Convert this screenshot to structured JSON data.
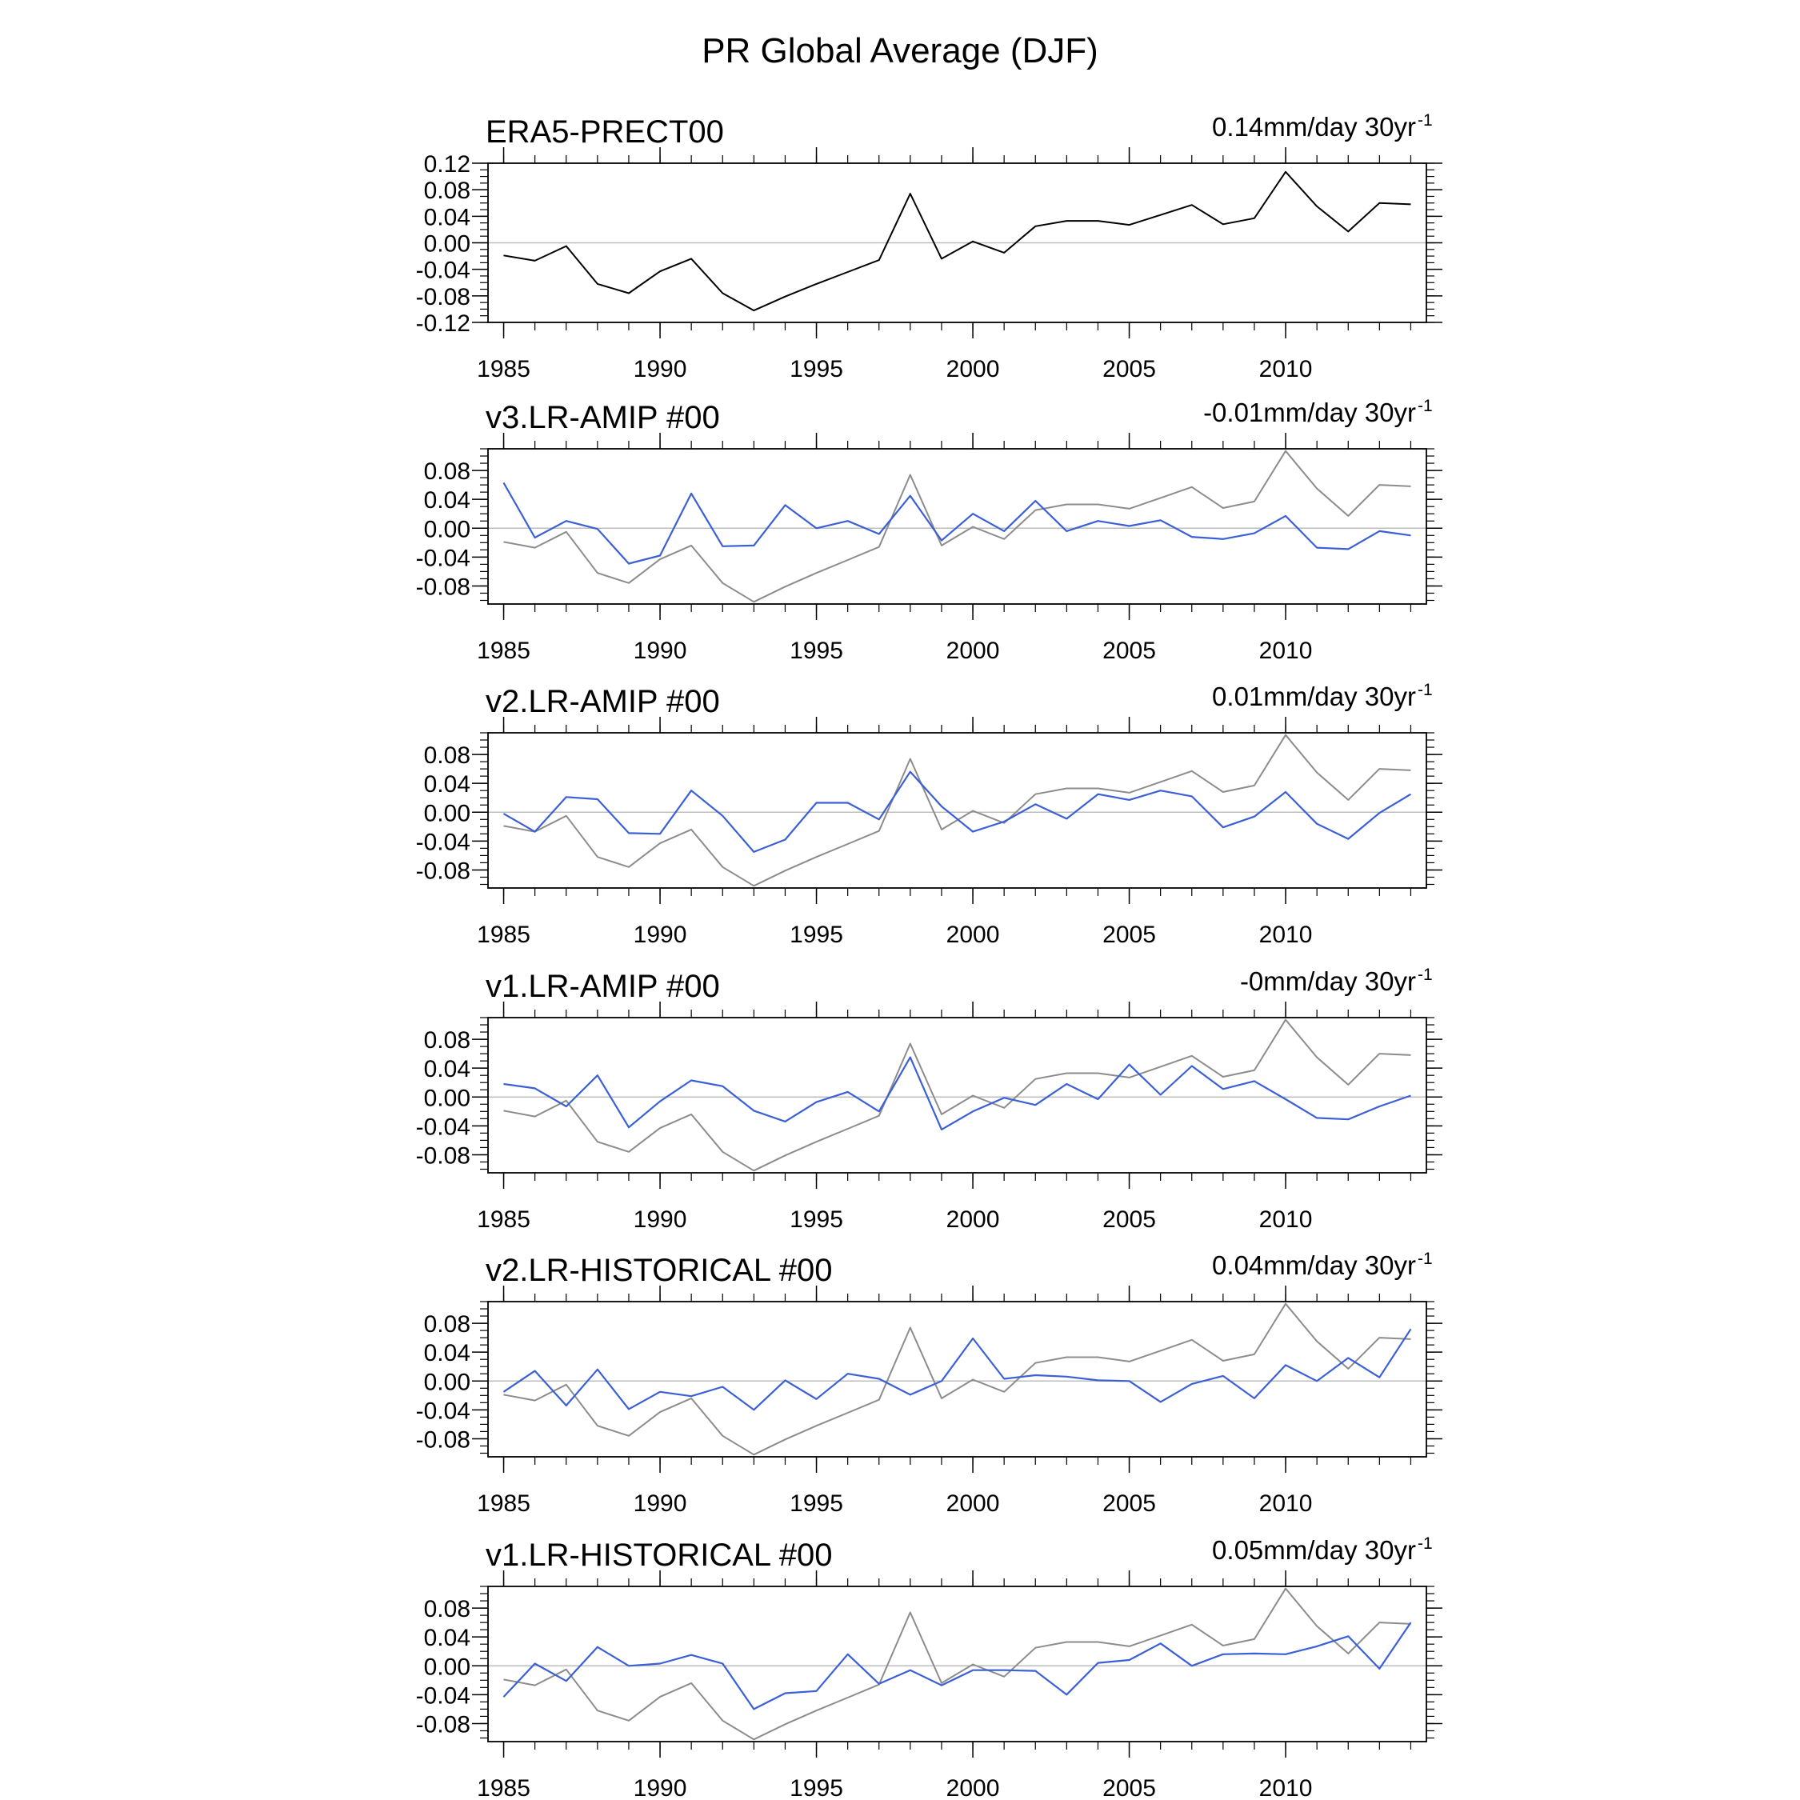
{
  "figure": {
    "title": "PR Global Average (DJF)"
  },
  "chart_data": [
    {
      "type": "line",
      "title": "ERA5-PRECT00",
      "trend_label": "0.14mm/day 30yr",
      "trend_exp": "-1",
      "x": [
        1985,
        1986,
        1987,
        1988,
        1989,
        1990,
        1991,
        1992,
        1993,
        1994,
        1995,
        1996,
        1997,
        1998,
        1999,
        2000,
        2001,
        2002,
        2003,
        2004,
        2005,
        2006,
        2007,
        2008,
        2009,
        2010,
        2011,
        2012,
        2013,
        2014
      ],
      "xlim": [
        1984.5,
        2014.5
      ],
      "xticks": [
        1985,
        1990,
        1995,
        2000,
        2005,
        2010
      ],
      "ylim": [
        -0.12,
        0.12
      ],
      "yticks": [
        -0.12,
        -0.08,
        -0.04,
        0.0,
        0.04,
        0.08,
        0.12
      ],
      "ytick_labels": [
        "-0.12",
        "-0.08",
        "-0.04",
        "0.00",
        "0.04",
        "0.08",
        "0.12"
      ],
      "series": [
        {
          "name": "ERA5",
          "color": "#000000",
          "values": [
            -0.019,
            -0.027,
            -0.005,
            -0.062,
            -0.076,
            -0.043,
            -0.024,
            -0.076,
            -0.102,
            -0.081,
            -0.062,
            -0.044,
            -0.026,
            0.074,
            -0.024,
            0.002,
            -0.015,
            0.025,
            0.033,
            0.033,
            0.027,
            0.042,
            0.057,
            0.028,
            0.037,
            0.107,
            0.055,
            0.017,
            0.06,
            0.058
          ]
        }
      ]
    },
    {
      "type": "line",
      "title": "v3.LR-AMIP  #00",
      "trend_label": "-0.01mm/day 30yr",
      "trend_exp": "-1",
      "x": [
        1985,
        1986,
        1987,
        1988,
        1989,
        1990,
        1991,
        1992,
        1993,
        1994,
        1995,
        1996,
        1997,
        1998,
        1999,
        2000,
        2001,
        2002,
        2003,
        2004,
        2005,
        2006,
        2007,
        2008,
        2009,
        2010,
        2011,
        2012,
        2013,
        2014
      ],
      "xlim": [
        1984.5,
        2014.5
      ],
      "xticks": [
        1985,
        1990,
        1995,
        2000,
        2005,
        2010
      ],
      "ylim": [
        -0.105,
        0.11
      ],
      "yticks": [
        -0.08,
        -0.04,
        0.0,
        0.04,
        0.08
      ],
      "ytick_labels": [
        "-0.08",
        "-0.04",
        "0.00",
        "0.04",
        "0.08"
      ],
      "series": [
        {
          "name": "ERA5",
          "color": "#8c8c8c",
          "values": [
            -0.019,
            -0.027,
            -0.005,
            -0.062,
            -0.076,
            -0.043,
            -0.024,
            -0.076,
            -0.102,
            -0.081,
            -0.062,
            -0.044,
            -0.026,
            0.074,
            -0.024,
            0.002,
            -0.015,
            0.025,
            0.033,
            0.033,
            0.027,
            0.042,
            0.057,
            0.028,
            0.037,
            0.107,
            0.055,
            0.017,
            0.06,
            0.058
          ]
        },
        {
          "name": "v3.LR-AMIP",
          "color": "#3a5fd6",
          "values": [
            0.063,
            -0.013,
            0.01,
            -0.001,
            -0.049,
            -0.038,
            0.048,
            -0.025,
            -0.024,
            0.032,
            0.0,
            0.01,
            -0.008,
            0.045,
            -0.017,
            0.02,
            -0.004,
            0.038,
            -0.004,
            0.01,
            0.003,
            0.011,
            -0.012,
            -0.015,
            -0.007,
            0.017,
            -0.027,
            -0.029,
            -0.004,
            -0.01
          ]
        }
      ]
    },
    {
      "type": "line",
      "title": "v2.LR-AMIP  #00",
      "trend_label": "0.01mm/day 30yr",
      "trend_exp": "-1",
      "x": [
        1985,
        1986,
        1987,
        1988,
        1989,
        1990,
        1991,
        1992,
        1993,
        1994,
        1995,
        1996,
        1997,
        1998,
        1999,
        2000,
        2001,
        2002,
        2003,
        2004,
        2005,
        2006,
        2007,
        2008,
        2009,
        2010,
        2011,
        2012,
        2013,
        2014
      ],
      "xlim": [
        1984.5,
        2014.5
      ],
      "xticks": [
        1985,
        1990,
        1995,
        2000,
        2005,
        2010
      ],
      "ylim": [
        -0.105,
        0.11
      ],
      "yticks": [
        -0.08,
        -0.04,
        0.0,
        0.04,
        0.08
      ],
      "ytick_labels": [
        "-0.08",
        "-0.04",
        "0.00",
        "0.04",
        "0.08"
      ],
      "series": [
        {
          "name": "ERA5",
          "color": "#8c8c8c",
          "values": [
            -0.019,
            -0.027,
            -0.005,
            -0.062,
            -0.076,
            -0.043,
            -0.024,
            -0.076,
            -0.102,
            -0.081,
            -0.062,
            -0.044,
            -0.026,
            0.074,
            -0.024,
            0.002,
            -0.015,
            0.025,
            0.033,
            0.033,
            0.027,
            0.042,
            0.057,
            0.028,
            0.037,
            0.107,
            0.055,
            0.017,
            0.06,
            0.058
          ]
        },
        {
          "name": "v2.LR-AMIP",
          "color": "#3a5fd6",
          "values": [
            -0.002,
            -0.027,
            0.021,
            0.018,
            -0.029,
            -0.03,
            0.03,
            -0.005,
            -0.055,
            -0.038,
            0.013,
            0.013,
            -0.01,
            0.056,
            0.008,
            -0.027,
            -0.013,
            0.011,
            -0.009,
            0.025,
            0.017,
            0.03,
            0.022,
            -0.021,
            -0.006,
            0.028,
            -0.016,
            -0.037,
            -0.001,
            0.025
          ]
        }
      ]
    },
    {
      "type": "line",
      "title": "v1.LR-AMIP  #00",
      "trend_label": "-0mm/day 30yr",
      "trend_exp": "-1",
      "x": [
        1985,
        1986,
        1987,
        1988,
        1989,
        1990,
        1991,
        1992,
        1993,
        1994,
        1995,
        1996,
        1997,
        1998,
        1999,
        2000,
        2001,
        2002,
        2003,
        2004,
        2005,
        2006,
        2007,
        2008,
        2009,
        2010,
        2011,
        2012,
        2013,
        2014
      ],
      "xlim": [
        1984.5,
        2014.5
      ],
      "xticks": [
        1985,
        1990,
        1995,
        2000,
        2005,
        2010
      ],
      "ylim": [
        -0.105,
        0.11
      ],
      "yticks": [
        -0.08,
        -0.04,
        0.0,
        0.04,
        0.08
      ],
      "ytick_labels": [
        "-0.08",
        "-0.04",
        "0.00",
        "0.04",
        "0.08"
      ],
      "series": [
        {
          "name": "ERA5",
          "color": "#8c8c8c",
          "values": [
            -0.019,
            -0.027,
            -0.005,
            -0.062,
            -0.076,
            -0.043,
            -0.024,
            -0.076,
            -0.102,
            -0.081,
            -0.062,
            -0.044,
            -0.026,
            0.074,
            -0.024,
            0.002,
            -0.015,
            0.025,
            0.033,
            0.033,
            0.027,
            0.042,
            0.057,
            0.028,
            0.037,
            0.107,
            0.055,
            0.017,
            0.06,
            0.058
          ]
        },
        {
          "name": "v1.LR-AMIP",
          "color": "#3a5fd6",
          "values": [
            0.018,
            0.012,
            -0.013,
            0.03,
            -0.042,
            -0.006,
            0.023,
            0.015,
            -0.019,
            -0.034,
            -0.007,
            0.007,
            -0.02,
            0.055,
            -0.045,
            -0.02,
            -0.001,
            -0.011,
            0.018,
            -0.003,
            0.045,
            0.003,
            0.043,
            0.011,
            0.022,
            -0.003,
            -0.029,
            -0.031,
            -0.013,
            0.002
          ]
        }
      ]
    },
    {
      "type": "line",
      "title": "v2.LR-HISTORICAL  #00",
      "trend_label": "0.04mm/day 30yr",
      "trend_exp": "-1",
      "x": [
        1985,
        1986,
        1987,
        1988,
        1989,
        1990,
        1991,
        1992,
        1993,
        1994,
        1995,
        1996,
        1997,
        1998,
        1999,
        2000,
        2001,
        2002,
        2003,
        2004,
        2005,
        2006,
        2007,
        2008,
        2009,
        2010,
        2011,
        2012,
        2013,
        2014
      ],
      "xlim": [
        1984.5,
        2014.5
      ],
      "xticks": [
        1985,
        1990,
        1995,
        2000,
        2005,
        2010
      ],
      "ylim": [
        -0.105,
        0.11
      ],
      "yticks": [
        -0.08,
        -0.04,
        0.0,
        0.04,
        0.08
      ],
      "ytick_labels": [
        "-0.08",
        "-0.04",
        "0.00",
        "0.04",
        "0.08"
      ],
      "series": [
        {
          "name": "ERA5",
          "color": "#8c8c8c",
          "values": [
            -0.019,
            -0.027,
            -0.005,
            -0.062,
            -0.076,
            -0.043,
            -0.024,
            -0.076,
            -0.102,
            -0.081,
            -0.062,
            -0.044,
            -0.026,
            0.074,
            -0.024,
            0.002,
            -0.015,
            0.025,
            0.033,
            0.033,
            0.027,
            0.042,
            0.057,
            0.028,
            0.037,
            0.107,
            0.055,
            0.017,
            0.06,
            0.058
          ]
        },
        {
          "name": "v2.LR-HISTORICAL",
          "color": "#3a5fd6",
          "values": [
            -0.015,
            0.014,
            -0.034,
            0.016,
            -0.039,
            -0.015,
            -0.021,
            -0.008,
            -0.04,
            0.001,
            -0.025,
            0.01,
            0.003,
            -0.019,
            0.0,
            0.059,
            0.003,
            0.008,
            0.006,
            0.001,
            0.0,
            -0.029,
            -0.004,
            0.007,
            -0.024,
            0.022,
            0.0,
            0.032,
            0.005,
            0.072
          ]
        }
      ]
    },
    {
      "type": "line",
      "title": "v1.LR-HISTORICAL  #00",
      "trend_label": "0.05mm/day 30yr",
      "trend_exp": "-1",
      "x": [
        1985,
        1986,
        1987,
        1988,
        1989,
        1990,
        1991,
        1992,
        1993,
        1994,
        1995,
        1996,
        1997,
        1998,
        1999,
        2000,
        2001,
        2002,
        2003,
        2004,
        2005,
        2006,
        2007,
        2008,
        2009,
        2010,
        2011,
        2012,
        2013,
        2014
      ],
      "xlim": [
        1984.5,
        2014.5
      ],
      "xticks": [
        1985,
        1990,
        1995,
        2000,
        2005,
        2010
      ],
      "ylim": [
        -0.105,
        0.11
      ],
      "yticks": [
        -0.08,
        -0.04,
        0.0,
        0.04,
        0.08
      ],
      "ytick_labels": [
        "-0.08",
        "-0.04",
        "0.00",
        "0.04",
        "0.08"
      ],
      "series": [
        {
          "name": "ERA5",
          "color": "#8c8c8c",
          "values": [
            -0.019,
            -0.027,
            -0.005,
            -0.062,
            -0.076,
            -0.043,
            -0.024,
            -0.076,
            -0.102,
            -0.081,
            -0.062,
            -0.044,
            -0.026,
            0.074,
            -0.024,
            0.002,
            -0.015,
            0.025,
            0.033,
            0.033,
            0.027,
            0.042,
            0.057,
            0.028,
            0.037,
            0.107,
            0.055,
            0.017,
            0.06,
            0.058
          ]
        },
        {
          "name": "v1.LR-HISTORICAL",
          "color": "#3a5fd6",
          "values": [
            -0.043,
            0.003,
            -0.021,
            0.026,
            0.0,
            0.003,
            0.015,
            0.003,
            -0.06,
            -0.038,
            -0.035,
            0.016,
            -0.025,
            -0.006,
            -0.027,
            -0.006,
            -0.006,
            -0.007,
            -0.04,
            0.004,
            0.008,
            0.031,
            0.0,
            0.016,
            0.017,
            0.016,
            0.027,
            0.041,
            -0.004,
            0.06
          ]
        }
      ]
    }
  ]
}
